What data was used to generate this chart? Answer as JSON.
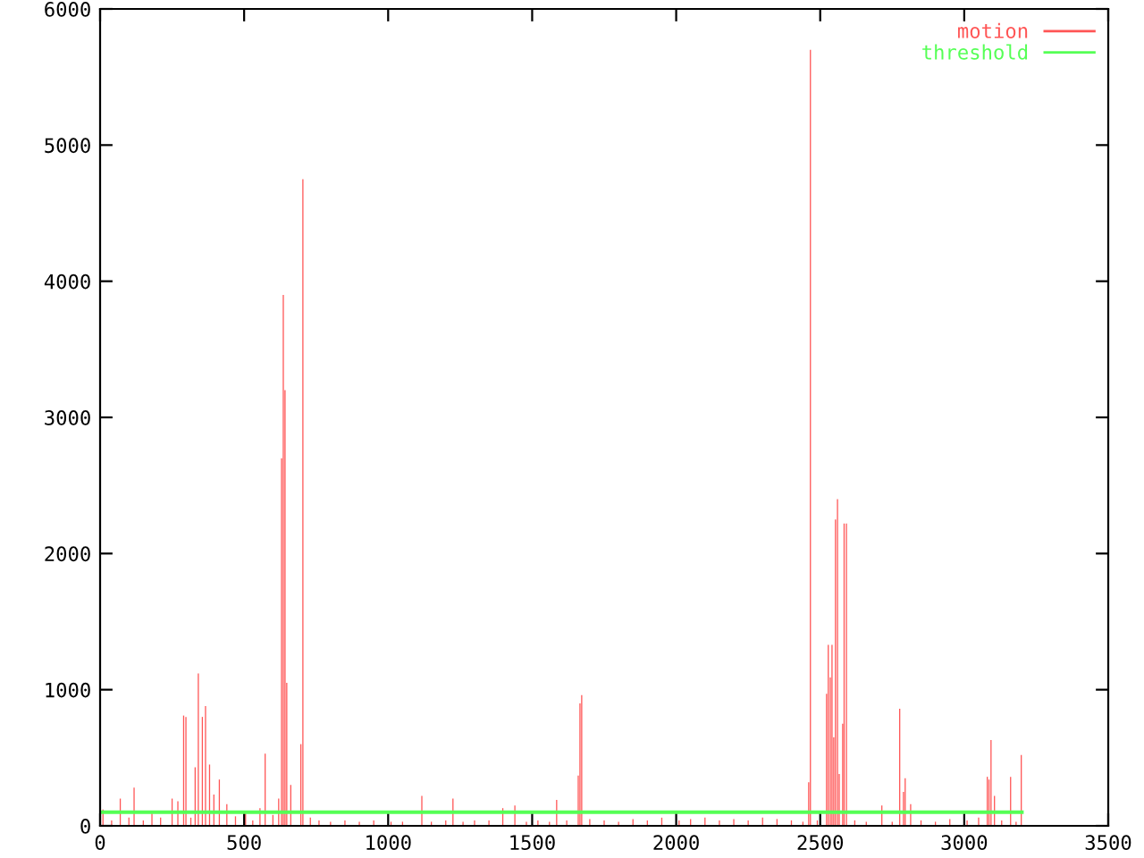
{
  "chart_data": {
    "type": "bar",
    "xlim": [
      0,
      3500
    ],
    "xticks": [
      0,
      500,
      1000,
      1500,
      2000,
      2500,
      3000,
      3500
    ],
    "ylim": [
      0,
      6000
    ],
    "yticks": [
      0,
      1000,
      2000,
      3000,
      4000,
      5000,
      6000
    ],
    "grid": false,
    "legend": "top right",
    "series": [
      {
        "name": "motion",
        "color": "#ff5555",
        "x": [
          10,
          40,
          70,
          100,
          118,
          150,
          180,
          210,
          250,
          270,
          290,
          298,
          315,
          330,
          341,
          355,
          366,
          380,
          395,
          414,
          440,
          470,
          505,
          530,
          555,
          573,
          600,
          620,
          630,
          636,
          642,
          648,
          662,
          697,
          704,
          730,
          760,
          800,
          850,
          900,
          950,
          1010,
          1050,
          1117,
          1150,
          1200,
          1225,
          1260,
          1300,
          1350,
          1398,
          1440,
          1480,
          1520,
          1560,
          1585,
          1620,
          1660,
          1666,
          1672,
          1700,
          1750,
          1800,
          1850,
          1900,
          1950,
          2010,
          2050,
          2100,
          2150,
          2200,
          2250,
          2300,
          2350,
          2400,
          2440,
          2460,
          2466,
          2490,
          2522,
          2528,
          2535,
          2541,
          2547,
          2553,
          2560,
          2566,
          2578,
          2583,
          2591,
          2620,
          2660,
          2714,
          2750,
          2776,
          2789,
          2795,
          2814,
          2850,
          2900,
          2950,
          3010,
          3050,
          3080,
          3086,
          3093,
          3105,
          3130,
          3161,
          3180,
          3198
        ],
        "values": [
          120,
          40,
          200,
          60,
          280,
          40,
          90,
          60,
          200,
          180,
          810,
          800,
          60,
          430,
          1120,
          800,
          880,
          450,
          230,
          340,
          160,
          70,
          90,
          40,
          130,
          530,
          80,
          200,
          2700,
          3900,
          3200,
          1050,
          300,
          600,
          4750,
          60,
          40,
          30,
          40,
          30,
          40,
          30,
          30,
          220,
          30,
          40,
          200,
          30,
          40,
          40,
          130,
          150,
          30,
          40,
          30,
          190,
          40,
          370,
          900,
          960,
          50,
          40,
          30,
          50,
          40,
          60,
          40,
          50,
          60,
          40,
          50,
          40,
          60,
          50,
          40,
          30,
          320,
          5700,
          40,
          970,
          1330,
          1090,
          1330,
          650,
          2250,
          2400,
          380,
          750,
          2220,
          2220,
          40,
          30,
          150,
          30,
          860,
          250,
          350,
          160,
          40,
          30,
          50,
          40,
          60,
          360,
          340,
          630,
          220,
          40,
          360,
          30,
          520
        ]
      },
      {
        "name": "threshold",
        "type": "line",
        "color": "#55ff55",
        "x": [
          0,
          3200
        ],
        "values": [
          100,
          100
        ]
      }
    ]
  }
}
